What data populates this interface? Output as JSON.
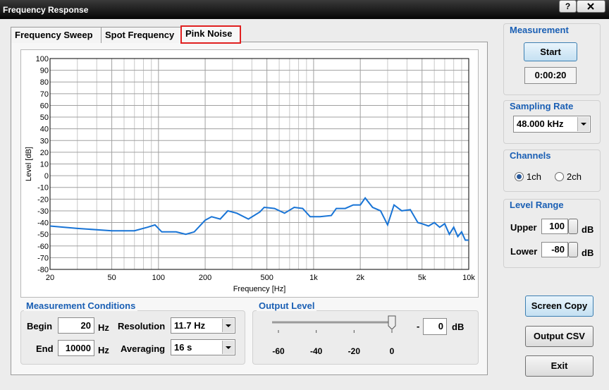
{
  "window": {
    "title": "Frequency Response",
    "help": "?"
  },
  "tabs": {
    "items": [
      "Frequency Sweep",
      "Spot Frequency",
      "Pink Noise"
    ],
    "selected": 2
  },
  "chart_data": {
    "type": "line",
    "xlabel": "Frequency [Hz]",
    "ylabel": "Level [dB]",
    "x": [
      20,
      30,
      50,
      70,
      85,
      95,
      105,
      130,
      150,
      170,
      200,
      220,
      250,
      280,
      320,
      380,
      450,
      480,
      560,
      650,
      750,
      850,
      950,
      1100,
      1300,
      1400,
      1600,
      1800,
      2000,
      2150,
      2400,
      2700,
      3000,
      3300,
      3700,
      4200,
      4700,
      5000,
      5500,
      6000,
      6500,
      7000,
      7500,
      8000,
      8500,
      9000,
      9500,
      10000
    ],
    "values": [
      -43,
      -45,
      -47,
      -47,
      -44,
      -42,
      -48,
      -48,
      -50,
      -48,
      -38,
      -35,
      -37,
      -30,
      -32,
      -37,
      -31,
      -27,
      -28,
      -32,
      -27,
      -28,
      -35,
      -35,
      -34,
      -28,
      -28,
      -25,
      -25,
      -19,
      -27,
      -30,
      -42,
      -25,
      -30,
      -29,
      -40,
      -41,
      -43,
      -40,
      -44,
      -41,
      -50,
      -44,
      -52,
      -48,
      -55,
      -55
    ],
    "color": "#1874d6",
    "xscale": "log",
    "grid": true,
    "xlim": [
      20,
      10000
    ],
    "ylim": [
      -80,
      100
    ],
    "xticks": [
      20,
      50,
      100,
      200,
      500,
      {
        "value": 1000,
        "label": "1k"
      },
      {
        "value": 2000,
        "label": "2k"
      },
      {
        "value": 5000,
        "label": "5k"
      },
      {
        "value": 10000,
        "label": "10k"
      }
    ],
    "x_minor_grid": [
      30,
      40,
      60,
      70,
      80,
      90,
      300,
      400,
      600,
      700,
      800,
      900,
      3000,
      4000,
      6000,
      7000,
      8000,
      9000
    ],
    "yticks": [
      -80,
      -70,
      -60,
      -50,
      -40,
      -30,
      -20,
      -10,
      0,
      10,
      20,
      30,
      40,
      50,
      60,
      70,
      80,
      90,
      100
    ]
  },
  "measurement": {
    "title": "Measurement",
    "button": "Start",
    "time": "0:00:20"
  },
  "sampling_rate": {
    "title": "Sampling Rate",
    "value": "48.000 kHz"
  },
  "channels": {
    "title": "Channels",
    "options": [
      "1ch",
      "2ch"
    ],
    "selected": 0
  },
  "level_range": {
    "title": "Level Range",
    "upper_label": "Upper",
    "upper": 100,
    "lower_label": "Lower",
    "lower": -80,
    "unit": "dB"
  },
  "measurement_conditions": {
    "title": "Measurement Conditions",
    "begin_label": "Begin",
    "begin": 20,
    "end_label": "End",
    "end": 10000,
    "unit": "Hz",
    "resolution_label": "Resolution",
    "resolution": "11.7 Hz",
    "averaging_label": "Averaging",
    "averaging": "16 s"
  },
  "output_level": {
    "title": "Output Level",
    "sign": "-",
    "value": 0,
    "unit": "dB",
    "scale": [
      -60,
      -40,
      -20,
      0
    ]
  },
  "buttons": [
    "Screen Copy",
    "Output CSV",
    "Exit"
  ]
}
